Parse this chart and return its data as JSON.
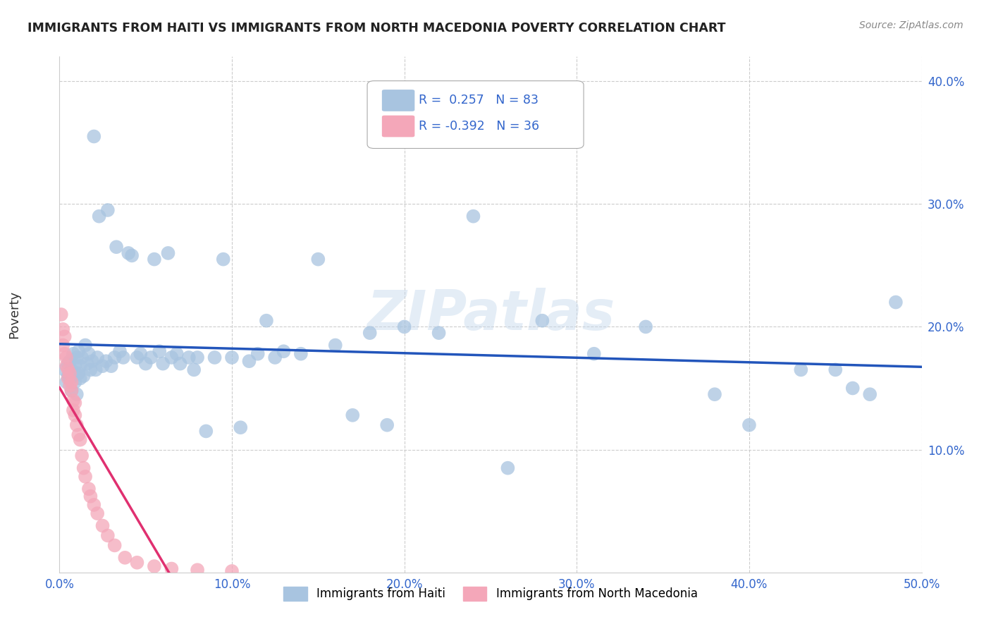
{
  "title": "IMMIGRANTS FROM HAITI VS IMMIGRANTS FROM NORTH MACEDONIA POVERTY CORRELATION CHART",
  "source": "Source: ZipAtlas.com",
  "ylabel": "Poverty",
  "xlim": [
    0,
    0.5
  ],
  "ylim": [
    0,
    0.42
  ],
  "xticks": [
    0.0,
    0.1,
    0.2,
    0.3,
    0.4,
    0.5
  ],
  "yticks": [
    0.0,
    0.1,
    0.2,
    0.3,
    0.4
  ],
  "xticklabels": [
    "0.0%",
    "10.0%",
    "20.0%",
    "30.0%",
    "40.0%",
    "50.0%"
  ],
  "yticklabels": [
    "",
    "10.0%",
    "20.0%",
    "30.0%",
    "40.0%"
  ],
  "haiti_R": 0.257,
  "haiti_N": 83,
  "macedonia_R": -0.392,
  "macedonia_N": 36,
  "haiti_color": "#a8c4e0",
  "macedonia_color": "#f4a7b9",
  "haiti_line_color": "#2255bb",
  "macedonia_line_color": "#e03070",
  "haiti_x": [
    0.003,
    0.004,
    0.005,
    0.005,
    0.006,
    0.006,
    0.007,
    0.007,
    0.008,
    0.008,
    0.009,
    0.009,
    0.01,
    0.01,
    0.011,
    0.011,
    0.012,
    0.012,
    0.013,
    0.014,
    0.015,
    0.016,
    0.017,
    0.018,
    0.019,
    0.02,
    0.021,
    0.022,
    0.023,
    0.025,
    0.027,
    0.028,
    0.03,
    0.032,
    0.033,
    0.035,
    0.037,
    0.04,
    0.042,
    0.045,
    0.047,
    0.05,
    0.053,
    0.055,
    0.058,
    0.06,
    0.063,
    0.065,
    0.068,
    0.07,
    0.075,
    0.078,
    0.08,
    0.085,
    0.09,
    0.095,
    0.1,
    0.105,
    0.11,
    0.115,
    0.12,
    0.125,
    0.13,
    0.14,
    0.15,
    0.16,
    0.17,
    0.18,
    0.19,
    0.2,
    0.22,
    0.24,
    0.26,
    0.28,
    0.31,
    0.34,
    0.38,
    0.4,
    0.43,
    0.45,
    0.46,
    0.47,
    0.485
  ],
  "haiti_y": [
    0.165,
    0.155,
    0.17,
    0.16,
    0.158,
    0.172,
    0.148,
    0.165,
    0.16,
    0.178,
    0.155,
    0.168,
    0.145,
    0.175,
    0.162,
    0.18,
    0.168,
    0.158,
    0.175,
    0.16,
    0.185,
    0.17,
    0.178,
    0.165,
    0.172,
    0.355,
    0.165,
    0.175,
    0.29,
    0.168,
    0.172,
    0.295,
    0.168,
    0.175,
    0.265,
    0.18,
    0.175,
    0.26,
    0.258,
    0.175,
    0.178,
    0.17,
    0.175,
    0.255,
    0.18,
    0.17,
    0.26,
    0.175,
    0.178,
    0.17,
    0.175,
    0.165,
    0.175,
    0.115,
    0.175,
    0.255,
    0.175,
    0.118,
    0.172,
    0.178,
    0.205,
    0.175,
    0.18,
    0.178,
    0.255,
    0.185,
    0.128,
    0.195,
    0.12,
    0.2,
    0.195,
    0.29,
    0.085,
    0.205,
    0.178,
    0.2,
    0.145,
    0.12,
    0.165,
    0.165,
    0.15,
    0.145,
    0.22
  ],
  "macedonia_x": [
    0.001,
    0.002,
    0.002,
    0.003,
    0.003,
    0.004,
    0.004,
    0.005,
    0.005,
    0.006,
    0.006,
    0.007,
    0.007,
    0.008,
    0.008,
    0.009,
    0.009,
    0.01,
    0.011,
    0.012,
    0.013,
    0.014,
    0.015,
    0.017,
    0.018,
    0.02,
    0.022,
    0.025,
    0.028,
    0.032,
    0.038,
    0.045,
    0.055,
    0.065,
    0.08,
    0.1
  ],
  "macedonia_y": [
    0.21,
    0.198,
    0.185,
    0.178,
    0.192,
    0.175,
    0.168,
    0.165,
    0.158,
    0.152,
    0.162,
    0.148,
    0.155,
    0.14,
    0.132,
    0.128,
    0.138,
    0.12,
    0.112,
    0.108,
    0.095,
    0.085,
    0.078,
    0.068,
    0.062,
    0.055,
    0.048,
    0.038,
    0.03,
    0.022,
    0.012,
    0.008,
    0.005,
    0.003,
    0.002,
    0.001
  ],
  "watermark": "ZIPatlas",
  "legend_haiti_label": "Immigrants from Haiti",
  "legend_macedonia_label": "Immigrants from North Macedonia",
  "background_color": "#ffffff",
  "grid_color": "#cccccc"
}
